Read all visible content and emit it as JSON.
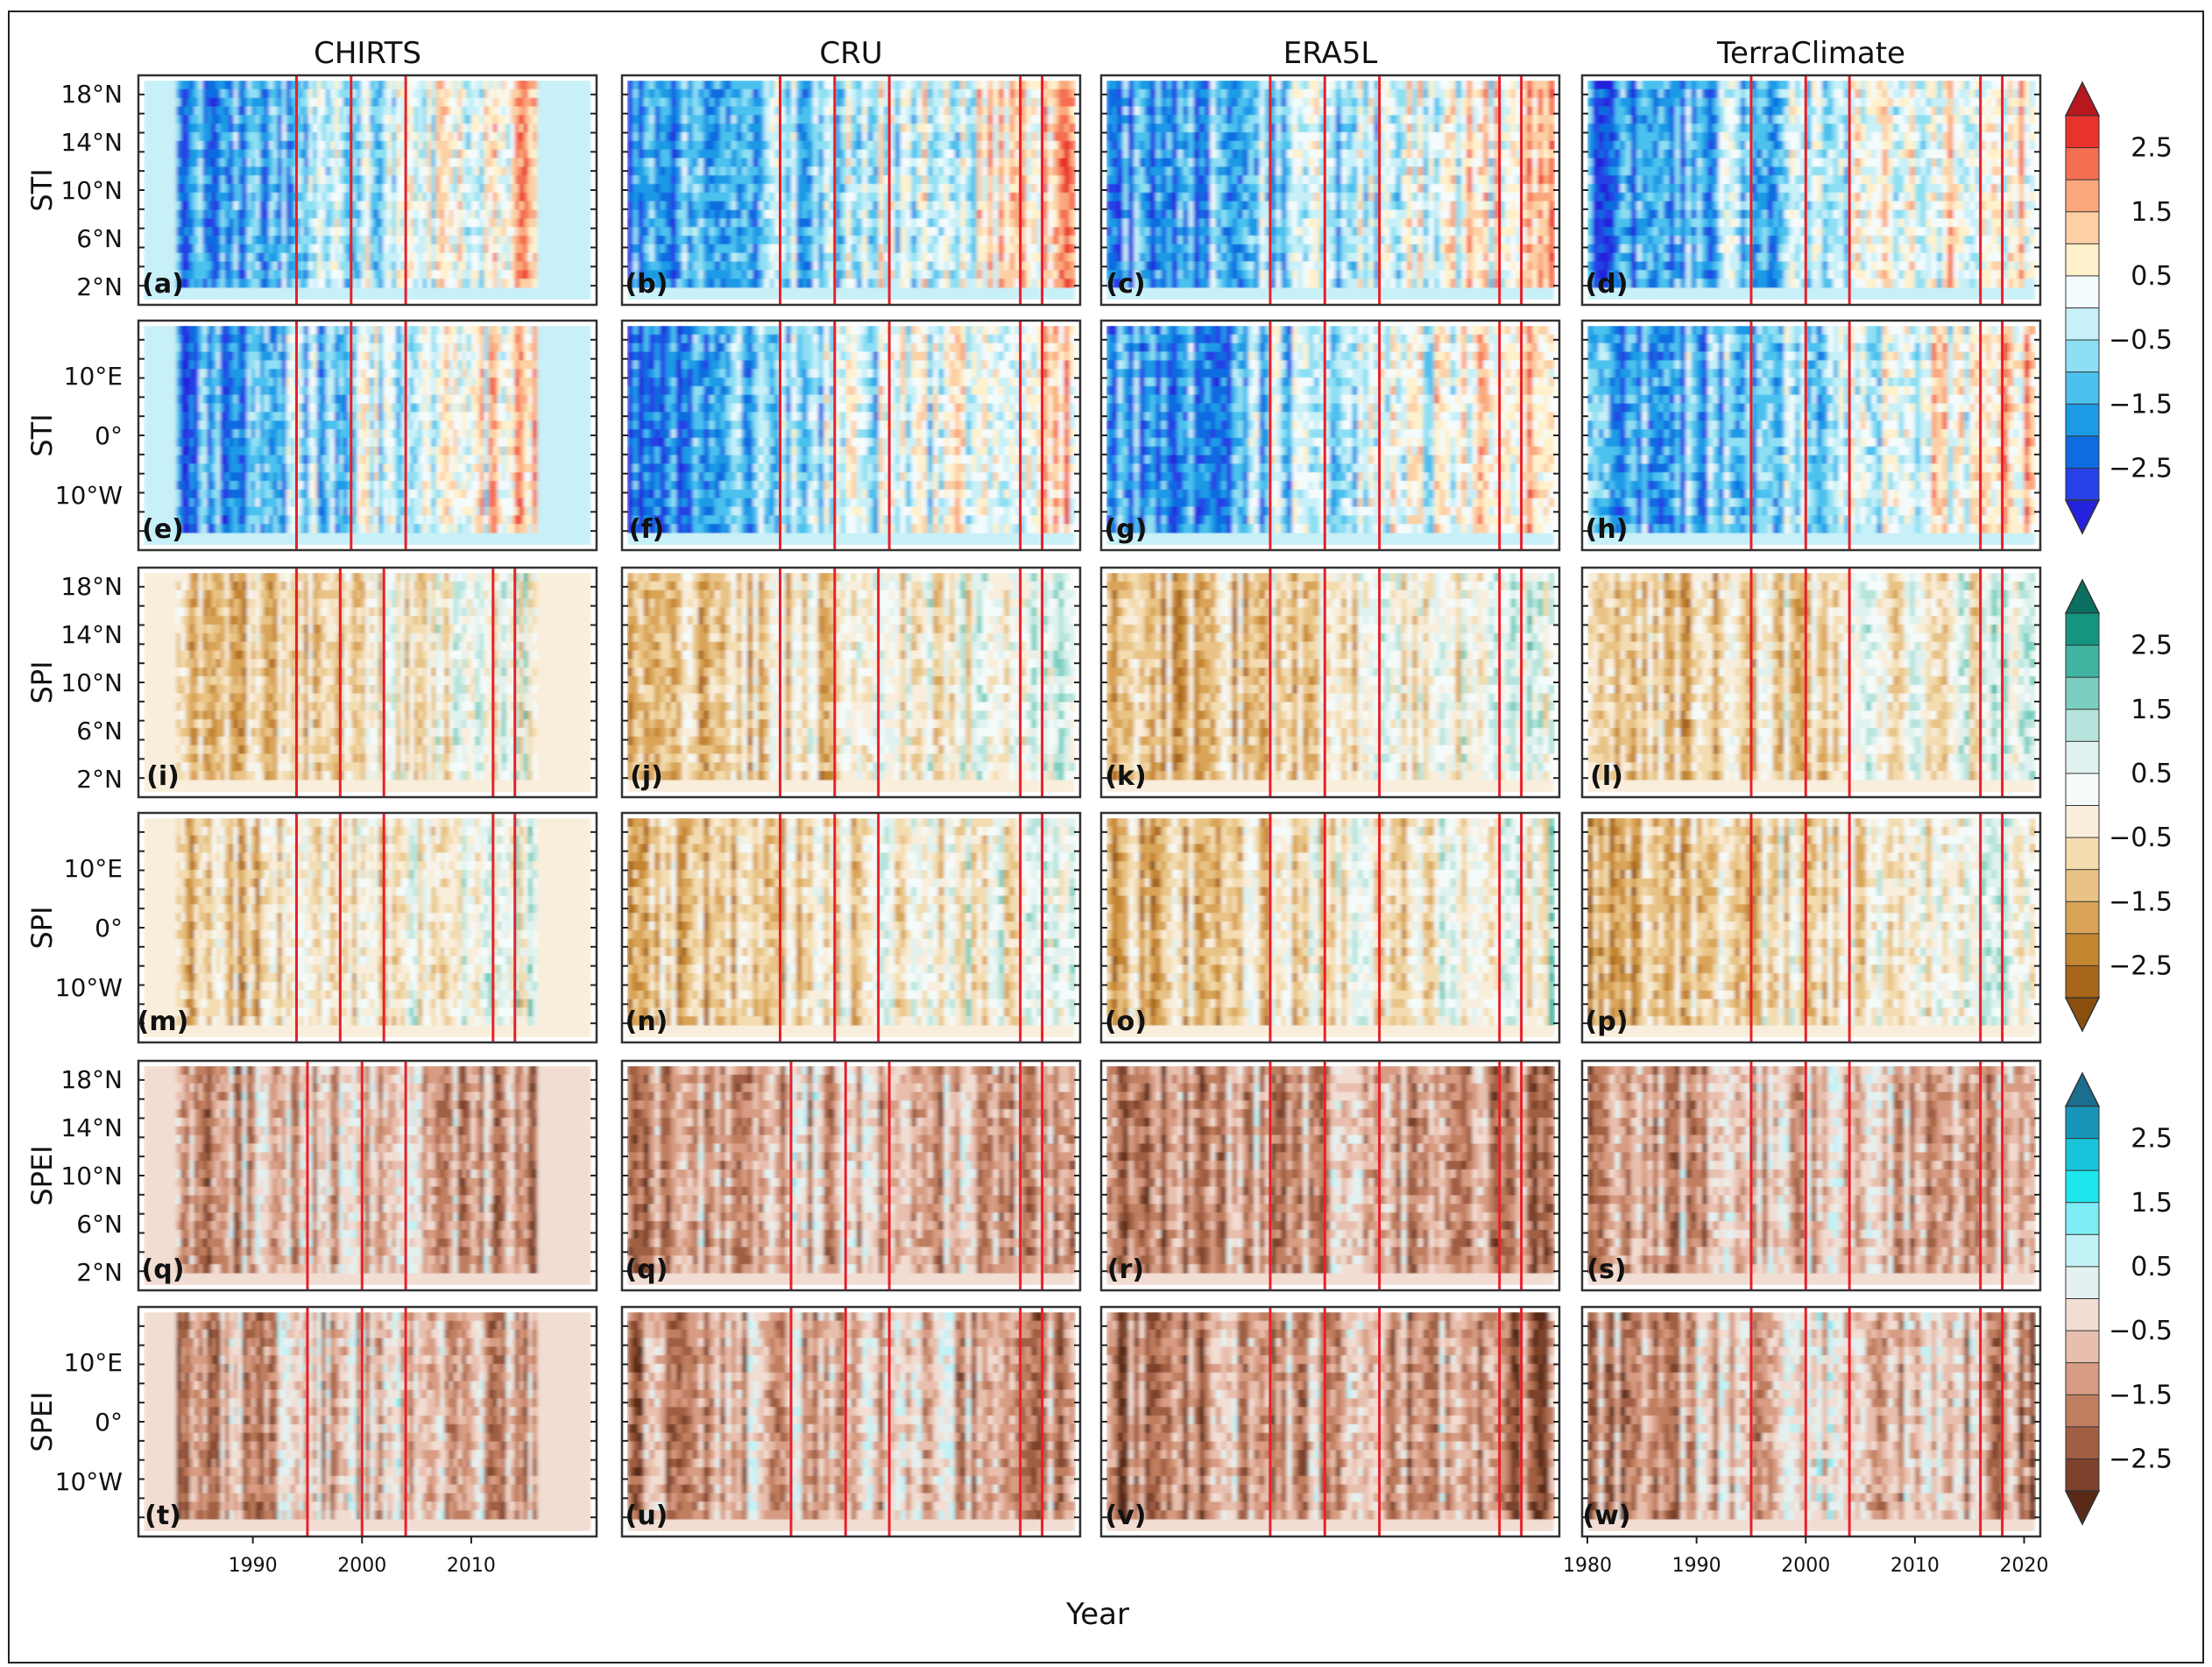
{
  "chart_data": {
    "type": "heatmap",
    "description": "Hovmoller diagrams of drought indices, grid of 6 rows by 4 dataset columns",
    "columns": [
      "CHIRTS",
      "CRU",
      "ERA5L",
      "TerraClimate"
    ],
    "rows": [
      {
        "ylabel": "STI",
        "axis": "lat",
        "ticks": [
          "18°N",
          "14°N",
          "10°N",
          "6°N",
          "2°N"
        ],
        "panels": [
          "(a)",
          "(b)",
          "(c)",
          "(d)"
        ],
        "palette": "sti"
      },
      {
        "ylabel": "STI",
        "axis": "lon",
        "ticks": [
          "10°E",
          "0°",
          "10°W"
        ],
        "panels": [
          "(e)",
          "(f)",
          "(g)",
          "(h)"
        ],
        "palette": "sti"
      },
      {
        "ylabel": "SPI",
        "axis": "lat",
        "ticks": [
          "18°N",
          "14°N",
          "10°N",
          "6°N",
          "2°N"
        ],
        "panels": [
          "(i)",
          "(j)",
          "(k)",
          "(l)"
        ],
        "palette": "spi"
      },
      {
        "ylabel": "SPI",
        "axis": "lon",
        "ticks": [
          "10°E",
          "0°",
          "10°W"
        ],
        "panels": [
          "(m)",
          "(n)",
          "(o)",
          "(p)"
        ],
        "palette": "spi"
      },
      {
        "ylabel": "SPEI",
        "axis": "lat",
        "ticks": [
          "18°N",
          "14°N",
          "10°N",
          "6°N",
          "2°N"
        ],
        "panels": [
          "(q)",
          "(q)",
          "(r)",
          "(s)"
        ],
        "palette": "spei"
      },
      {
        "ylabel": "SPEI",
        "axis": "lon",
        "ticks": [
          "10°E",
          "0°",
          "10°W"
        ],
        "panels": [
          "(t)",
          "(u)",
          "(v)",
          "(w)"
        ],
        "palette": "spei"
      }
    ],
    "x_axis": {
      "label": "Year",
      "range": [
        1980,
        2021
      ],
      "chirts_range": [
        1983,
        2016
      ],
      "chirts_ticks": [
        "1990",
        "2000",
        "2010"
      ],
      "terraclimate_ticks": [
        "1980",
        "1990",
        "2000",
        "2010",
        "2020"
      ]
    },
    "lat_range": [
      0,
      20
    ],
    "lon_range": [
      -18,
      18
    ],
    "drought_event_years": {
      "CHIRTS": {
        "sti": [
          1994,
          1999,
          2004
        ],
        "spi": [
          1994,
          1998,
          2002,
          2012,
          2014
        ],
        "spei": [
          1995,
          2000,
          2004
        ]
      },
      "CRU": {
        "sti": [
          1994,
          1999,
          2004,
          2016,
          2018
        ],
        "spi": [
          1994,
          1999,
          2003,
          2016,
          2018
        ],
        "spei": [
          1995,
          2000,
          2004,
          2016,
          2018
        ]
      },
      "ERA5L": {
        "sti": [
          1995,
          2000,
          2005,
          2016,
          2018
        ],
        "spi": [
          1995,
          2000,
          2005,
          2016,
          2018
        ],
        "spei": [
          1995,
          2000,
          2005,
          2016,
          2018
        ]
      },
      "TerraClimate": {
        "sti": [
          1995,
          2000,
          2004,
          2016,
          2018
        ],
        "spi": [
          1995,
          2000,
          2004,
          2016,
          2018
        ],
        "spei": [
          1995,
          2000,
          2004,
          2016,
          2018
        ]
      }
    },
    "colorbars": [
      {
        "name": "STI",
        "labels": [
          "2.5",
          "1.5",
          "0.5",
          "−0.5",
          "−1.5",
          "−2.5"
        ],
        "colors": [
          "#b8171f",
          "#e8322b",
          "#f56f51",
          "#fba77d",
          "#fdd0a5",
          "#fff1cc",
          "#f4fbfd",
          "#c8f0f8",
          "#8edff3",
          "#4cc1ee",
          "#1d9ae6",
          "#0f6ce0",
          "#2841e6",
          "#2422dc"
        ]
      },
      {
        "name": "SPI",
        "labels": [
          "2.5",
          "1.5",
          "0.5",
          "−0.5",
          "−1.5",
          "−2.5"
        ],
        "colors": [
          "#0b6f5f",
          "#159580",
          "#3fb4a0",
          "#7ccfc0",
          "#b6e4dc",
          "#dff2ef",
          "#f4fbfa",
          "#f9eedc",
          "#f3dcb0",
          "#e8c385",
          "#d9a458",
          "#c48530",
          "#a8661a",
          "#8a4f0e"
        ]
      },
      {
        "name": "SPEI",
        "labels": [
          "2.5",
          "1.5",
          "0.5",
          "−0.5",
          "−1.5",
          "−2.5"
        ],
        "colors": [
          "#1a6f8e",
          "#1796b9",
          "#19c3d9",
          "#1de6ee",
          "#7eecf4",
          "#c3f2f6",
          "#e4f1f0",
          "#f2ddd3",
          "#e8bfae",
          "#d79c83",
          "#c07e61",
          "#a05f43",
          "#7c422b",
          "#5a2a18"
        ]
      }
    ]
  }
}
